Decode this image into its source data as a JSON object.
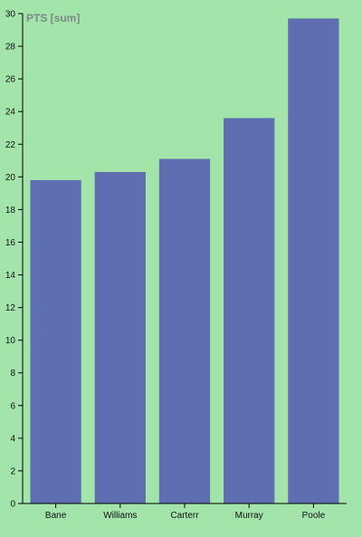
{
  "chart_data": {
    "type": "bar",
    "title": "PTS [sum]",
    "xlabel": "",
    "ylabel": "",
    "categories": [
      "Bane",
      "Williams",
      "Carterr",
      "Murray",
      "Poole"
    ],
    "values": [
      19.8,
      20.3,
      21.1,
      23.6,
      29.7
    ],
    "ylim": [
      0,
      30
    ],
    "yticks": [
      0,
      2,
      4,
      6,
      8,
      10,
      12,
      14,
      16,
      18,
      20,
      22,
      24,
      26,
      28,
      30
    ],
    "grid": false,
    "bar_color": "#5e6eb0",
    "background": "#a3e4ab"
  }
}
